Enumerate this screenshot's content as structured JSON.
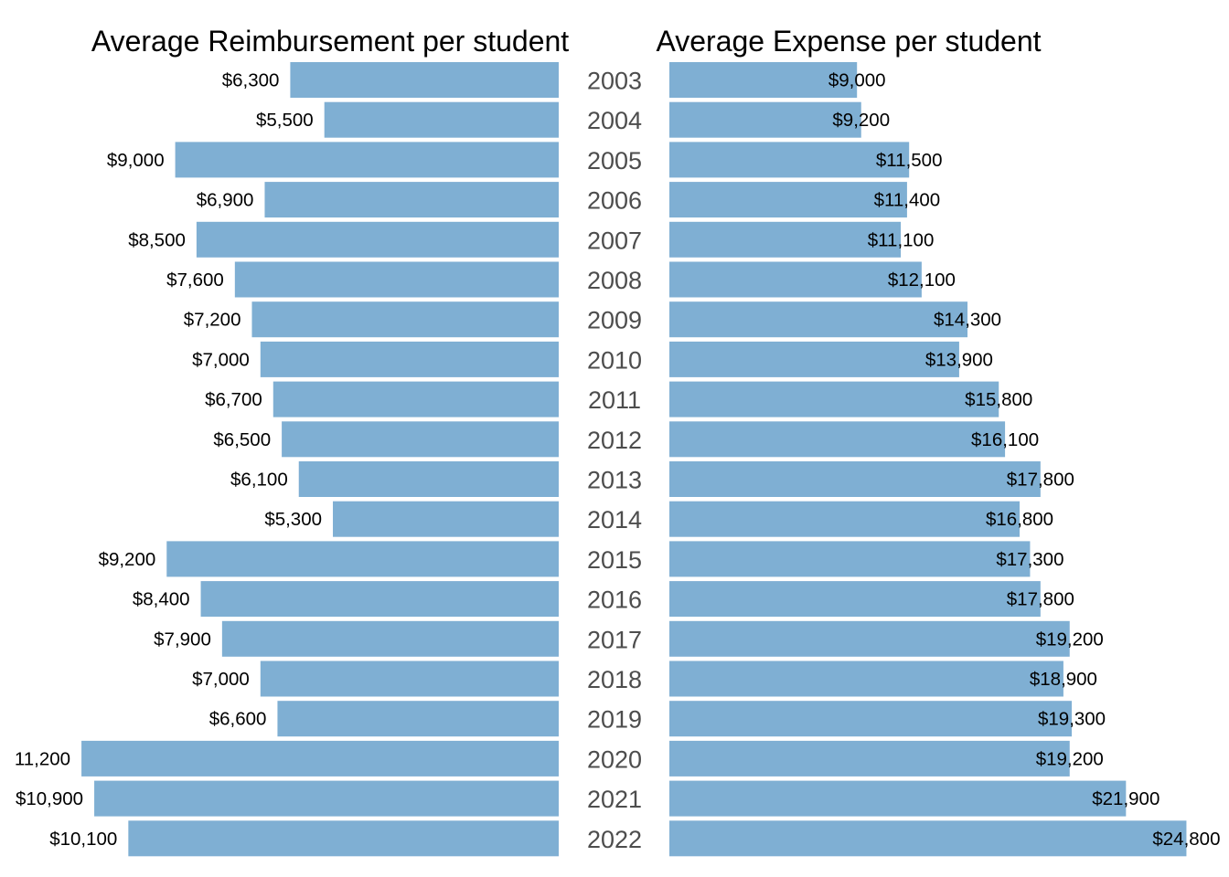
{
  "chart_data": [
    {
      "type": "bar",
      "orientation": "horizontal",
      "direction": "right-to-left",
      "title": "Average Reimbursement per student",
      "categories": [
        "2003",
        "2004",
        "2005",
        "2006",
        "2007",
        "2008",
        "2009",
        "2010",
        "2011",
        "2012",
        "2013",
        "2014",
        "2015",
        "2016",
        "2017",
        "2018",
        "2019",
        "2020",
        "2021",
        "2022"
      ],
      "values": [
        6300,
        5500,
        9000,
        6900,
        8500,
        7600,
        7200,
        7000,
        6700,
        6500,
        6100,
        5300,
        9200,
        8400,
        7900,
        7000,
        6600,
        11200,
        10900,
        10100
      ],
      "labels": [
        "$6,300",
        "$5,500",
        "$9,000",
        "$6,900",
        "$8,500",
        "$7,600",
        "$7,200",
        "$7,000",
        "$6,700",
        "$6,500",
        "$6,100",
        "$5,300",
        "$9,200",
        "$8,400",
        "$7,900",
        "$7,000",
        "$6,600",
        "11,200",
        "$10,900",
        "$10,100"
      ],
      "color": "#7fafd3",
      "grid": false
    },
    {
      "type": "bar",
      "orientation": "horizontal",
      "direction": "left-to-right",
      "title": "Average Expense per student",
      "categories": [
        "2003",
        "2004",
        "2005",
        "2006",
        "2007",
        "2008",
        "2009",
        "2010",
        "2011",
        "2012",
        "2013",
        "2014",
        "2015",
        "2016",
        "2017",
        "2018",
        "2019",
        "2020",
        "2021",
        "2022"
      ],
      "values": [
        9000,
        9200,
        11500,
        11400,
        11100,
        12100,
        14300,
        13900,
        15800,
        16100,
        17800,
        16800,
        17300,
        17800,
        19200,
        18900,
        19300,
        19200,
        21900,
        24800
      ],
      "labels": [
        "$9,000",
        "$9,200",
        "$11,500",
        "$11,400",
        "$11,100",
        "$12,100",
        "$14,300",
        "$13,900",
        "$15,800",
        "$16,100",
        "$17,800",
        "$16,800",
        "$17,300",
        "$17,800",
        "$19,200",
        "$18,900",
        "$19,300",
        "$19,200",
        "$21,900",
        "$24,800"
      ],
      "color": "#7fafd3",
      "grid": false
    }
  ]
}
